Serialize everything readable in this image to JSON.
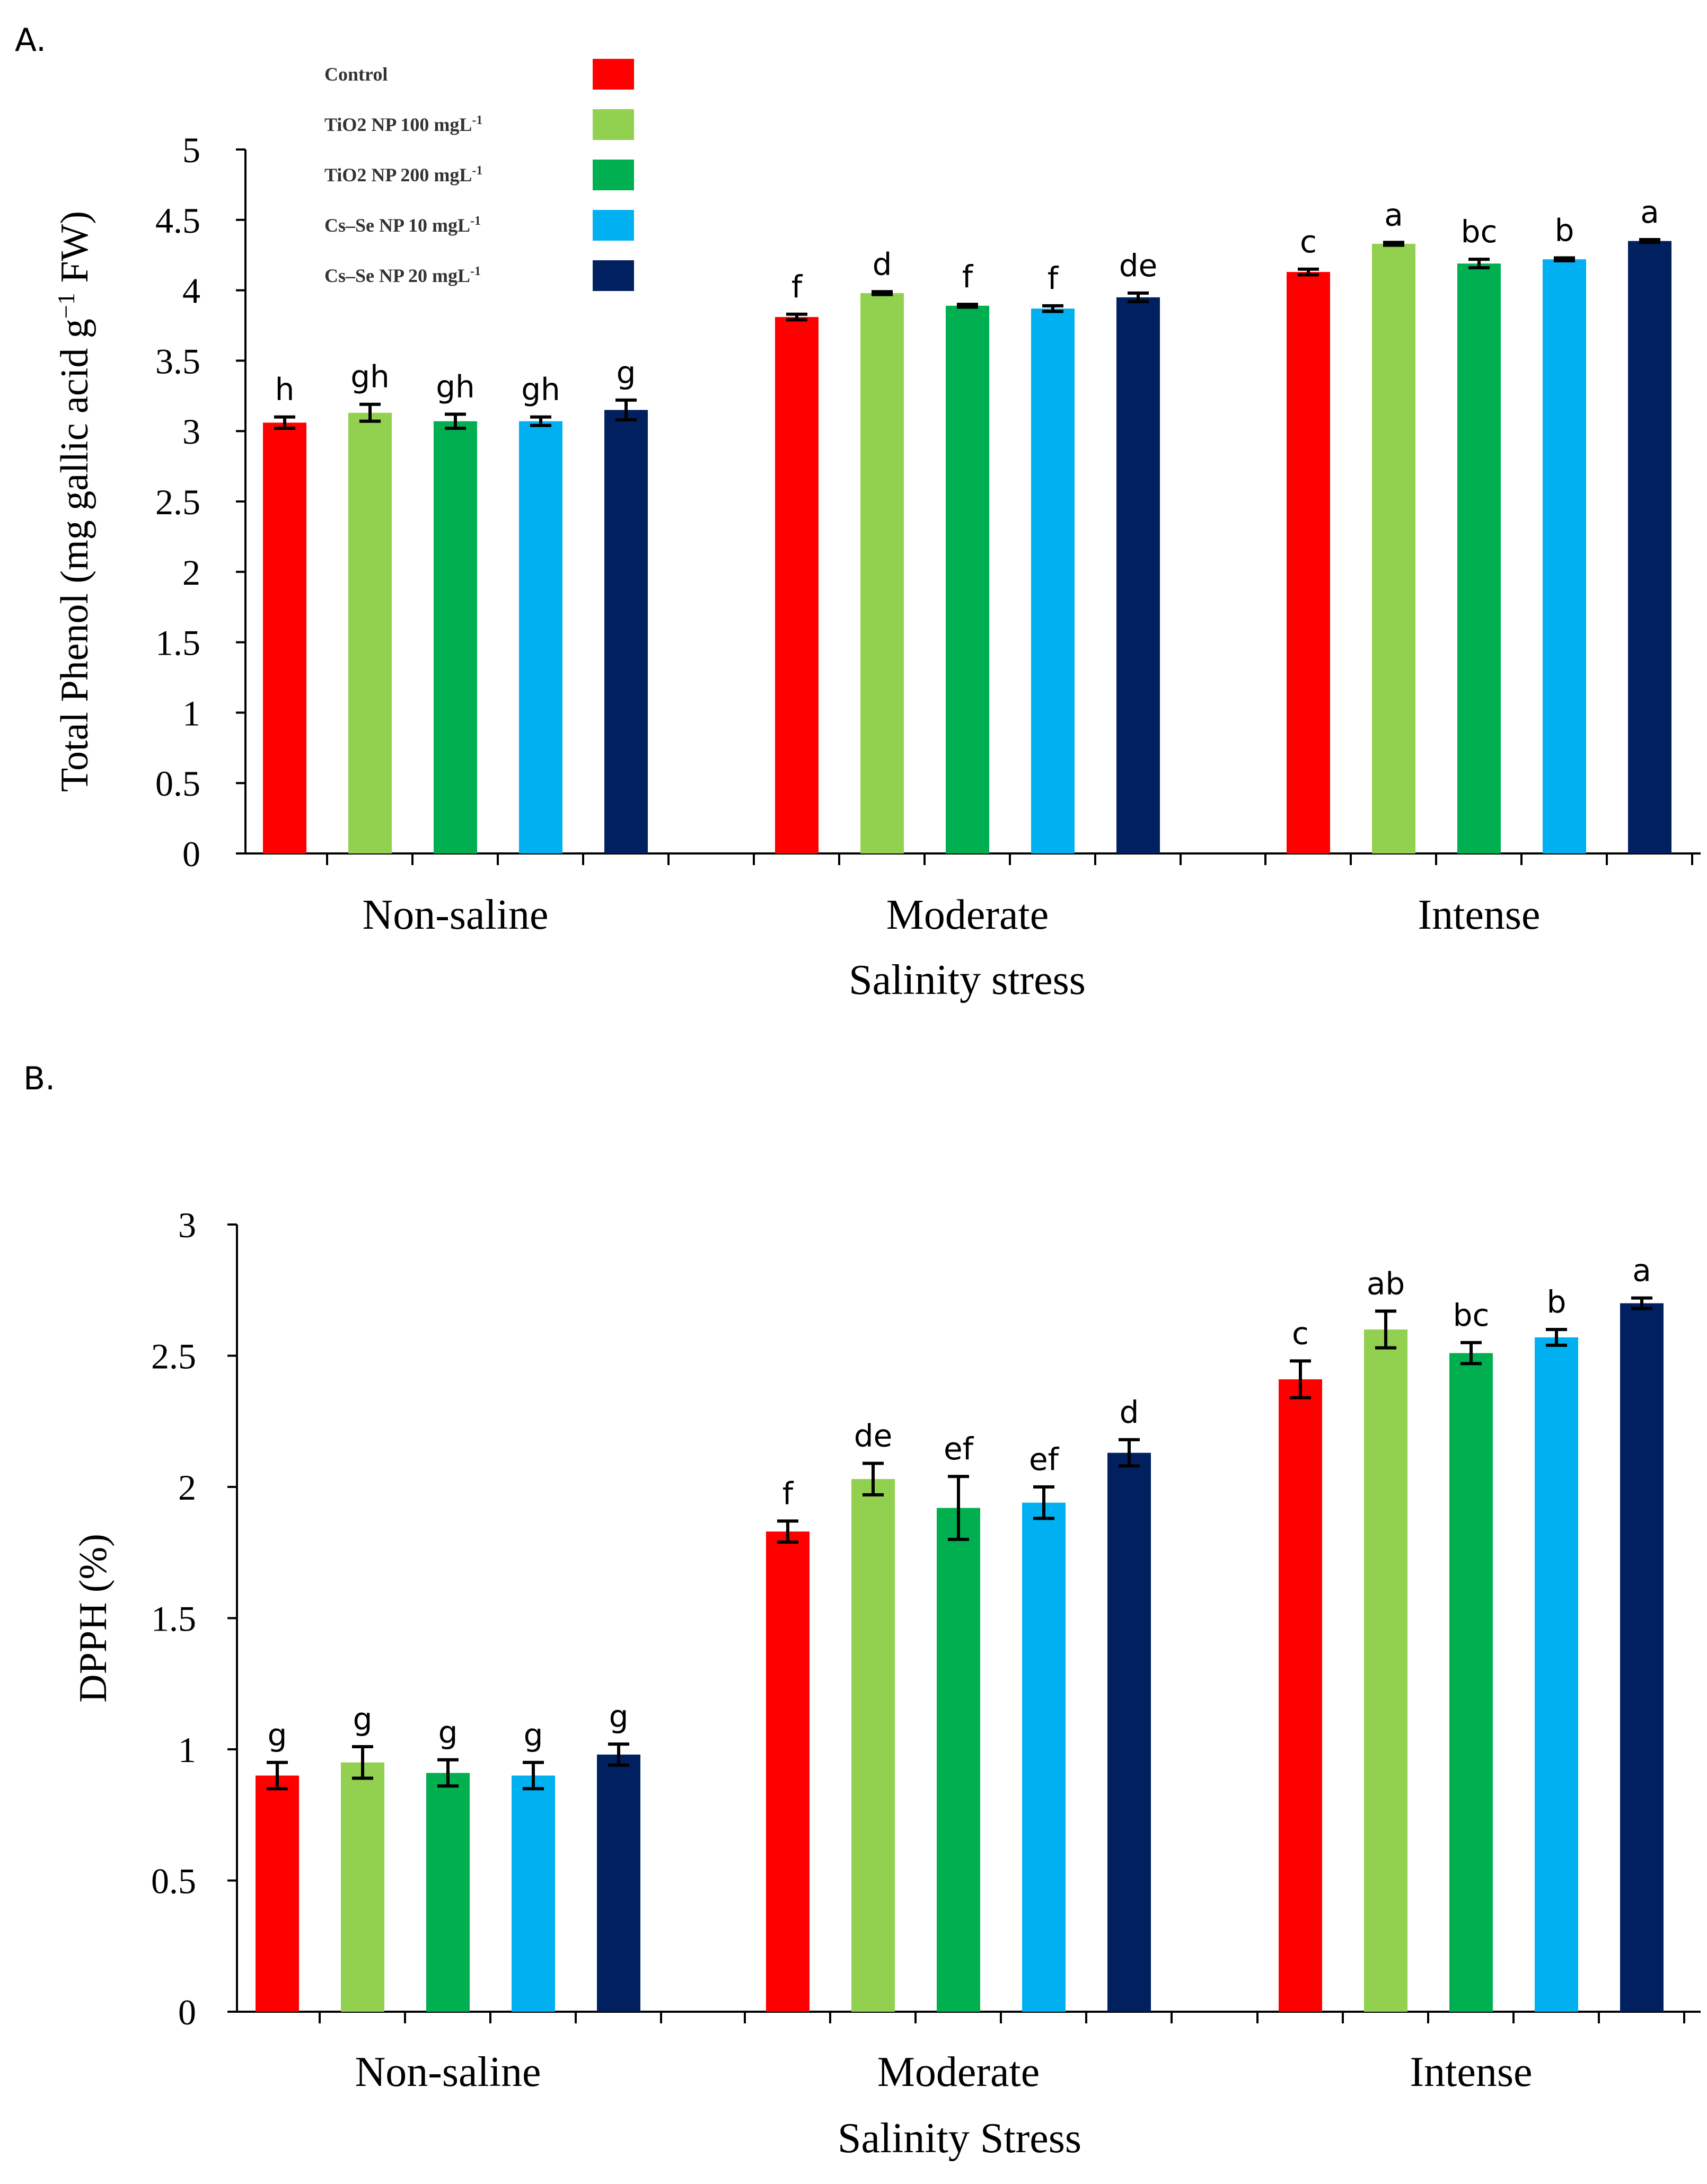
{
  "panels": [
    {
      "panel_label": "A.",
      "legend": {
        "entries": [
          {
            "label": "Control",
            "sup": ""
          },
          {
            "label": "TiO2 NP 100 mgL",
            "sup": "-1"
          },
          {
            "label": "TiO2 NP 200 mgL",
            "sup": "-1"
          },
          {
            "label": "Cs–Se NP 10 mgL",
            "sup": "-1"
          },
          {
            "label": "Cs–Se NP 20 mgL",
            "sup": "-1"
          }
        ]
      },
      "ylabel": {
        "text": "Total Phenol (mg gallic acid g",
        "sup": "−1",
        "tail": " FW)"
      }
    },
    {
      "panel_label": "B.",
      "ylabel": {
        "text": "DPPH (%)",
        "sup": "",
        "tail": ""
      }
    }
  ],
  "chart_data": [
    {
      "type": "bar",
      "title": "",
      "xlabel": "Salinity stress",
      "ylabel": "Total Phenol (mg gallic acid g−1 FW)",
      "ylim": [
        0,
        5
      ],
      "yticks": [
        0,
        0.5,
        1,
        1.5,
        2,
        2.5,
        3,
        3.5,
        4,
        4.5,
        5
      ],
      "ytick_labels": [
        "0",
        "0.5",
        "1",
        "1.5",
        "2",
        "2.5",
        "3",
        "3.5",
        "4",
        "4.5",
        "5"
      ],
      "categories": [
        "Non-saline",
        "Moderate",
        "Intense"
      ],
      "series": [
        {
          "name": "Control",
          "color": "#ff0000",
          "values": [
            3.06,
            3.81,
            4.13
          ],
          "errors": [
            0.04,
            0.02,
            0.02
          ],
          "letters": [
            "h",
            "f",
            "c"
          ]
        },
        {
          "name": "TiO2 NP 100 mgL-1",
          "color": "#92d050",
          "values": [
            3.13,
            3.98,
            4.33
          ],
          "errors": [
            0.06,
            0.01,
            0.01
          ],
          "letters": [
            "gh",
            "d",
            "a"
          ]
        },
        {
          "name": "TiO2 NP 200 mgL-1",
          "color": "#00b050",
          "values": [
            3.07,
            3.89,
            4.19
          ],
          "errors": [
            0.05,
            0.01,
            0.03
          ],
          "letters": [
            "gh",
            "f",
            "bc"
          ]
        },
        {
          "name": "Cs–Se NP 10 mgL-1",
          "color": "#00b0f0",
          "values": [
            3.07,
            3.87,
            4.22
          ],
          "errors": [
            0.03,
            0.02,
            0.01
          ],
          "letters": [
            "gh",
            "f",
            "b"
          ]
        },
        {
          "name": "Cs–Se NP 20 mgL-1",
          "color": "#002060",
          "values": [
            3.15,
            3.95,
            4.35
          ],
          "errors": [
            0.07,
            0.03,
            0.01
          ],
          "letters": [
            "g",
            "de",
            "a"
          ]
        }
      ]
    },
    {
      "type": "bar",
      "title": "",
      "xlabel": "Salinity Stress",
      "ylabel": "DPPH (%)",
      "ylim": [
        0,
        3
      ],
      "yticks": [
        0,
        0.5,
        1,
        1.5,
        2,
        2.5,
        3
      ],
      "ytick_labels": [
        "0",
        "0.5",
        "1",
        "1.5",
        "2",
        "2.5",
        "3"
      ],
      "categories": [
        "Non-saline",
        "Moderate",
        "Intense"
      ],
      "series": [
        {
          "name": "Control",
          "color": "#ff0000",
          "values": [
            0.9,
            1.83,
            2.41
          ],
          "errors": [
            0.05,
            0.04,
            0.07
          ],
          "letters": [
            "g",
            "f",
            "c"
          ]
        },
        {
          "name": "TiO2 NP 100 mgL-1",
          "color": "#92d050",
          "values": [
            0.95,
            2.03,
            2.6
          ],
          "errors": [
            0.06,
            0.06,
            0.07
          ],
          "letters": [
            "g",
            "de",
            "ab"
          ]
        },
        {
          "name": "TiO2 NP 200 mgL-1",
          "color": "#00b050",
          "values": [
            0.91,
            1.92,
            2.51
          ],
          "errors": [
            0.05,
            0.12,
            0.04
          ],
          "letters": [
            "g",
            "ef",
            "bc"
          ]
        },
        {
          "name": "Cs–Se NP 10 mgL-1",
          "color": "#00b0f0",
          "values": [
            0.9,
            1.94,
            2.57
          ],
          "errors": [
            0.05,
            0.06,
            0.03
          ],
          "letters": [
            "g",
            "ef",
            "b"
          ]
        },
        {
          "name": "Cs–Se NP 20 mgL-1",
          "color": "#002060",
          "values": [
            0.98,
            2.13,
            2.7
          ],
          "errors": [
            0.04,
            0.05,
            0.02
          ],
          "letters": [
            "g",
            "d",
            "a"
          ]
        }
      ]
    }
  ]
}
